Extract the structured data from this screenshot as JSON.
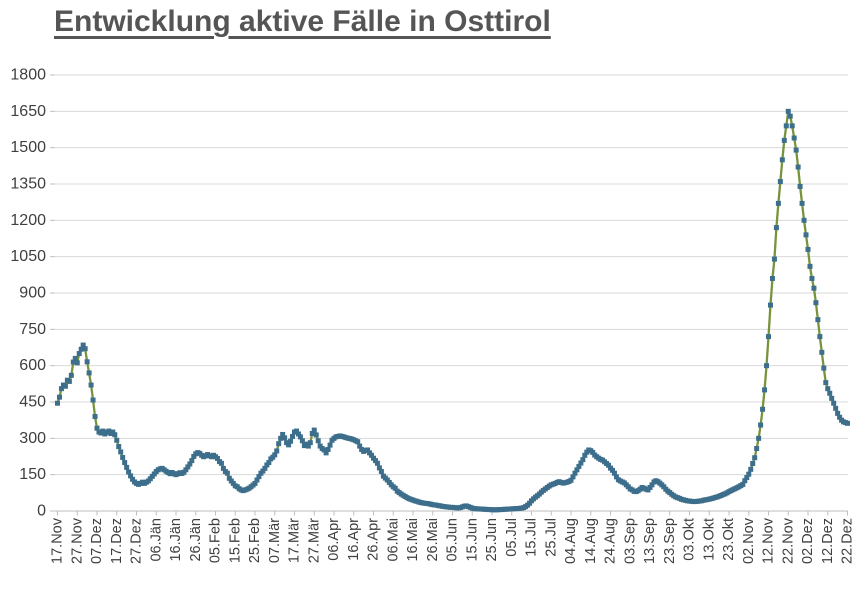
{
  "colors": {
    "line": "#77933C",
    "marker": "#3D6E8C",
    "grid": "#D9D9D9",
    "axis": "#BFBFBF",
    "axis_text": "#3F3F3F",
    "title_text": "#555555"
  },
  "chart_data": {
    "type": "line",
    "title": "Entwicklung aktive Fälle in Osttirol",
    "legend": "none",
    "grid": "horizontal",
    "ylim": [
      0,
      1800
    ],
    "y_ticks": [
      0,
      150,
      300,
      450,
      600,
      750,
      900,
      1050,
      1200,
      1350,
      1500,
      1650,
      1800
    ],
    "x_tick_interval_days": 10,
    "x_tick_labels": [
      "17.Nov",
      "27.Nov",
      "07.Dez",
      "17.Dez",
      "27.Dez",
      "06.Jän",
      "16.Jän",
      "26.Jän",
      "05.Feb",
      "15.Feb",
      "25.Feb",
      "07.Mär",
      "17.Mär",
      "27.Mär",
      "06.Apr",
      "16.Apr",
      "26.Apr",
      "06.Mai",
      "16.Mai",
      "26.Mai",
      "05.Jun",
      "15.Jun",
      "25.Jun",
      "05.Jul",
      "15.Jul",
      "25.Jul",
      "04.Aug",
      "14.Aug",
      "24.Aug",
      "03.Sep",
      "13.Sep",
      "23.Sep",
      "03.Okt",
      "13.Okt",
      "23.Okt",
      "02.Nov",
      "12.Nov",
      "22.Nov",
      "02.Dez",
      "12.Dez",
      "22.Dez"
    ],
    "series": [
      {
        "name": "aktive Fälle Osttirol",
        "sampling": "daily",
        "x_start_label": "17.Nov",
        "x_end_label": "22.Dez",
        "values": [
          445,
          470,
          505,
          520,
          515,
          540,
          535,
          560,
          615,
          630,
          612,
          650,
          668,
          685,
          670,
          616,
          570,
          520,
          458,
          390,
          342,
          326,
          322,
          330,
          318,
          325,
          330,
          320,
          326,
          315,
          292,
          266,
          244,
          221,
          200,
          180,
          161,
          145,
          131,
          120,
          114,
          110,
          114,
          119,
          114,
          119,
          124,
          133,
          143,
          153,
          163,
          170,
          174,
          176,
          170,
          164,
          159,
          154,
          159,
          154,
          150,
          154,
          158,
          155,
          160,
          170,
          182,
          194,
          208,
          225,
          236,
          241,
          238,
          230,
          224,
          228,
          233,
          228,
          224,
          230,
          224,
          217,
          204,
          197,
          176,
          163,
          156,
          135,
          124,
          114,
          104,
          100,
          92,
          87,
          84,
          87,
          90,
          94,
          100,
          107,
          114,
          128,
          142,
          156,
          165,
          176,
          190,
          200,
          215,
          222,
          232,
          248,
          278,
          300,
          316,
          302,
          282,
          273,
          288,
          308,
          326,
          330,
          318,
          306,
          290,
          270,
          276,
          268,
          282,
          320,
          334,
          314,
          290,
          268,
          258,
          252,
          240,
          254,
          272,
          292,
          300,
          306,
          308,
          310,
          308,
          306,
          303,
          301,
          299,
          297,
          294,
          290,
          286,
          268,
          254,
          246,
          250,
          252,
          240,
          230,
          218,
          208,
          197,
          178,
          163,
          144,
          136,
          128,
          118,
          108,
          100,
          94,
          82,
          76,
          70,
          65,
          60,
          55,
          51,
          48,
          45,
          42,
          40,
          37,
          35,
          33,
          32,
          31,
          30,
          28,
          26,
          25,
          24,
          22,
          21,
          19,
          18,
          17,
          16,
          15,
          15,
          14,
          13,
          13,
          14,
          17,
          20,
          21,
          18,
          15,
          12,
          10,
          9,
          9,
          8,
          8,
          7,
          7,
          6,
          6,
          5,
          5,
          5,
          5,
          6,
          6,
          7,
          7,
          8,
          8,
          9,
          9,
          10,
          10,
          11,
          12,
          14,
          18,
          24,
          32,
          42,
          50,
          57,
          63,
          70,
          78,
          85,
          91,
          97,
          103,
          108,
          111,
          114,
          118,
          121,
          118,
          115,
          117,
          119,
          122,
          127,
          141,
          156,
          170,
          184,
          198,
          212,
          230,
          243,
          252,
          249,
          242,
          231,
          224,
          218,
          213,
          210,
          203,
          196,
          189,
          177,
          168,
          156,
          141,
          129,
          124,
          120,
          116,
          108,
          100,
          91,
          87,
          81,
          80,
          84,
          90,
          97,
          94,
          90,
          87,
          97,
          108,
          120,
          125,
          121,
          115,
          108,
          100,
          90,
          82,
          76,
          69,
          63,
          58,
          55,
          52,
          48,
          46,
          44,
          42,
          41,
          40,
          39,
          39,
          40,
          41,
          42,
          44,
          46,
          47,
          49,
          51,
          53,
          56,
          58,
          61,
          64,
          68,
          71,
          75,
          80,
          84,
          88,
          92,
          96,
          100,
          105,
          110,
          125,
          138,
          152,
          172,
          196,
          220,
          258,
          300,
          355,
          420,
          500,
          600,
          720,
          850,
          960,
          1040,
          1170,
          1270,
          1360,
          1450,
          1530,
          1590,
          1650,
          1630,
          1590,
          1540,
          1490,
          1420,
          1340,
          1270,
          1200,
          1140,
          1080,
          1010,
          960,
          920,
          860,
          790,
          720,
          655,
          590,
          530,
          505,
          486,
          465,
          445,
          424,
          403,
          387,
          375,
          368,
          365,
          362
        ]
      }
    ]
  }
}
